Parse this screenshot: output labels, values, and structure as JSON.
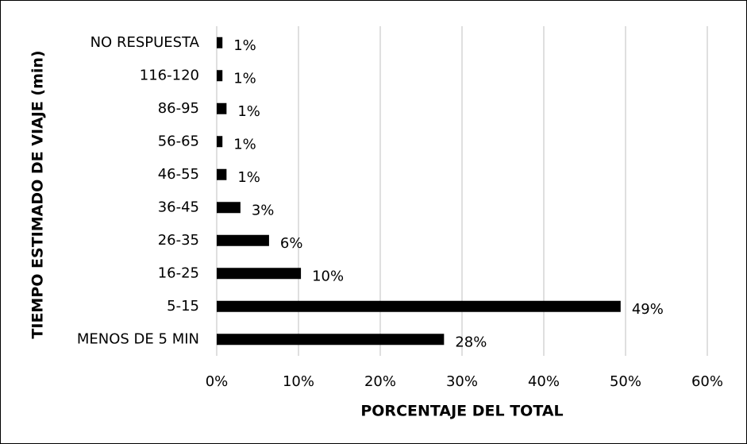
{
  "chart_data": {
    "type": "hbar",
    "x_label": "PORCENTAJE DEL TOTAL",
    "y_label": "TIEMPO ESTIMADO DE VIAJE (min)",
    "categories": [
      "MENOS DE 5 MIN",
      "5-15",
      "16-25",
      "26-35",
      "36-45",
      "46-55",
      "56-65",
      "86-95",
      "116-120",
      "NO RESPUESTA"
    ],
    "values": [
      27.8,
      49.4,
      10.3,
      6.4,
      2.9,
      1.2,
      0.7,
      1.2,
      0.7,
      0.7
    ],
    "value_labels": [
      "28%",
      "49%",
      "10%",
      "6%",
      "3%",
      "1%",
      "1%",
      "1%",
      "1%",
      "1%"
    ],
    "color": "#000000",
    "xlim": [
      0,
      60
    ],
    "xticks": [
      {
        "value": 0,
        "label": "0%"
      },
      {
        "value": 10,
        "label": "10%"
      },
      {
        "value": 20,
        "label": "20%"
      },
      {
        "value": 30,
        "label": "30%"
      },
      {
        "value": 40,
        "label": "40%"
      },
      {
        "value": 50,
        "label": "50%"
      },
      {
        "value": 60,
        "label": "60%"
      }
    ],
    "grid": true
  }
}
